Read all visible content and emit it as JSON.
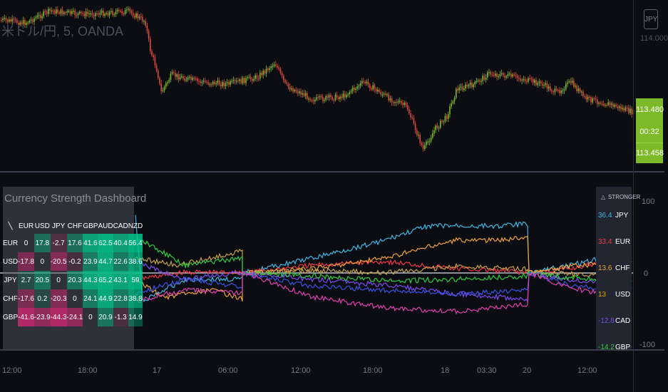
{
  "chart_header": {
    "symbol_title": "米ドル/円, 5, OANDA",
    "currency_badge": "JPY",
    "top_price_tick": "114.000"
  },
  "price_scale": {
    "last_price": "113.480",
    "countdown": "00:32",
    "low_price": "113.458"
  },
  "indicator_scale": {
    "ticks": [
      "100",
      "0",
      "-100"
    ]
  },
  "time_axis": {
    "labels": [
      "12:00",
      "18:00",
      "17",
      "06:00",
      "12:00",
      "18:00",
      "18",
      "03:30",
      "20",
      "12:00"
    ]
  },
  "dashboard": {
    "title": "Currency Strength Dashboard",
    "corner": "╲",
    "columns": [
      "EUR",
      "USD",
      "JPY",
      "CHF",
      "GBP",
      "AUD",
      "CAD",
      "NZD"
    ],
    "rows": [
      {
        "label": "EUR",
        "cells": [
          "0",
          "17.8",
          "-2.7",
          "17.6",
          "41.6",
          "62.5",
          "40.4",
          "56.4"
        ]
      },
      {
        "label": "USD",
        "cells": [
          "-17.8",
          "0",
          "-20.5",
          "-0.2",
          "23.9",
          "44.7",
          "22.6",
          "38.6"
        ]
      },
      {
        "label": "JPY",
        "cells": [
          "2.7",
          "20.5",
          "0",
          "20.3",
          "44.3",
          "65.2",
          "43.1",
          "59"
        ]
      },
      {
        "label": "CHF",
        "cells": [
          "-17.6",
          "0.2",
          "-20.3",
          "0",
          "24.1",
          "44.9",
          "22.8",
          "38.8"
        ]
      },
      {
        "label": "GBP",
        "cells": [
          "-41.6",
          "-23.9",
          "-44.3",
          "-24.1",
          "0",
          "20.9",
          "-1.3",
          "14.9"
        ]
      }
    ]
  },
  "ranking": {
    "header_delta": "△",
    "header_label": "STRONGER",
    "rows": [
      {
        "value": "36.4",
        "currency": "JPY",
        "color": "#3fb6e0"
      },
      {
        "value": "33.4",
        "currency": "EUR",
        "color": "#f23645"
      },
      {
        "value": "13.6",
        "currency": "CHF",
        "color": "#f0a23a"
      },
      {
        "value": "13",
        "currency": "USD",
        "color": "#e8a200"
      },
      {
        "value": "-12.8",
        "currency": "CAD",
        "color": "#7b4cf0"
      },
      {
        "value": "-14.2",
        "currency": "GBP",
        "color": "#2ecc40"
      }
    ]
  },
  "colors": {
    "candle_up": "#7dba2a",
    "candle_down": "#e04a3a",
    "price_tag": "#7dba2a",
    "jpy_line": "#3fb6e0",
    "eur_line": "#f23645",
    "chf_line": "#f0a23a",
    "usd_line": "#c8a04a",
    "cad_line": "#7b4cf0",
    "gbp_line": "#2ecc40",
    "aud_line": "#3a52e0",
    "nzd_line": "#e040b0"
  }
}
